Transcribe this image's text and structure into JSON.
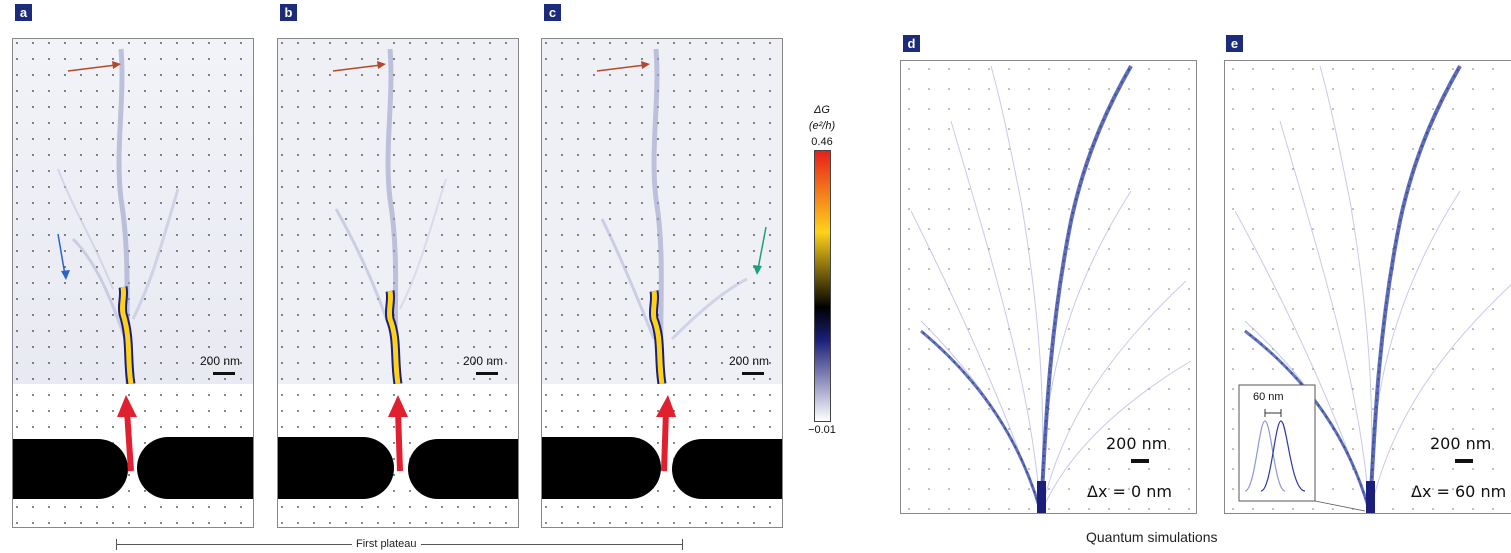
{
  "panels": {
    "a": {
      "letter": "a",
      "scale_label": "200 nm"
    },
    "b": {
      "letter": "b",
      "scale_label": "200 nm"
    },
    "c": {
      "letter": "c",
      "scale_label": "200 nm"
    },
    "d": {
      "letter": "d",
      "scale_label": "200 nm",
      "shift_label": "Δx = 0 nm"
    },
    "e": {
      "letter": "e",
      "scale_label": "200 nm",
      "shift_label": "Δx = 60 nm",
      "inset_label": "60 nm"
    }
  },
  "colorbar": {
    "symbol": "ΔG",
    "unit": "(e²/h)",
    "max_label": "0.46",
    "min_label": "−0.01",
    "colors": [
      "#ffffff",
      "#1b1f7a",
      "#000000",
      "#ffd21a",
      "#e8201a"
    ]
  },
  "captions": {
    "plateau": "First plateau",
    "simulations": "Quantum simulations"
  },
  "arrow_colors": {
    "top": "#b5482a",
    "blue": "#2a63c9",
    "green": "#1ca07a",
    "qpc": "#e0202f"
  }
}
